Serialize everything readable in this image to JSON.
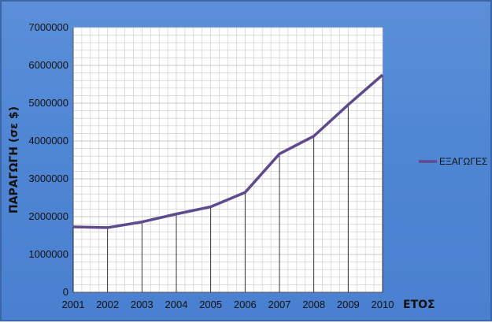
{
  "chart_data": {
    "type": "line",
    "x": [
      2001,
      2002,
      2003,
      2004,
      2005,
      2006,
      2007,
      2008,
      2009,
      2010
    ],
    "x_tick_labels": [
      "2001",
      "2002",
      "2003",
      "2004",
      "2005",
      "2006",
      "2007",
      "2008",
      "2009",
      "2010"
    ],
    "series": [
      {
        "name": "ΕΞΑΓΩΓΕΣ",
        "values": [
          1730000,
          1710000,
          1860000,
          2070000,
          2260000,
          2640000,
          3660000,
          4130000,
          4960000,
          5750000
        ],
        "color": "#5e4a8c"
      }
    ],
    "ylim": [
      0,
      7000000
    ],
    "y_ticks": [
      0,
      1000000,
      2000000,
      3000000,
      4000000,
      5000000,
      6000000,
      7000000
    ],
    "y_tick_labels": [
      "0",
      "1000000",
      "2000000",
      "3000000",
      "4000000",
      "5000000",
      "6000000",
      "7000000"
    ],
    "ylabel": "ΠΑΡΑΓΩΓΗ (σε $)",
    "xlabel": "ΕΤΟΣ",
    "grid": true,
    "legend_position": "right"
  },
  "colors": {
    "background": "#4f86d4",
    "plot_area": "#ffffff",
    "grid": "#c8c8c8",
    "line": "#5e4a8c"
  }
}
